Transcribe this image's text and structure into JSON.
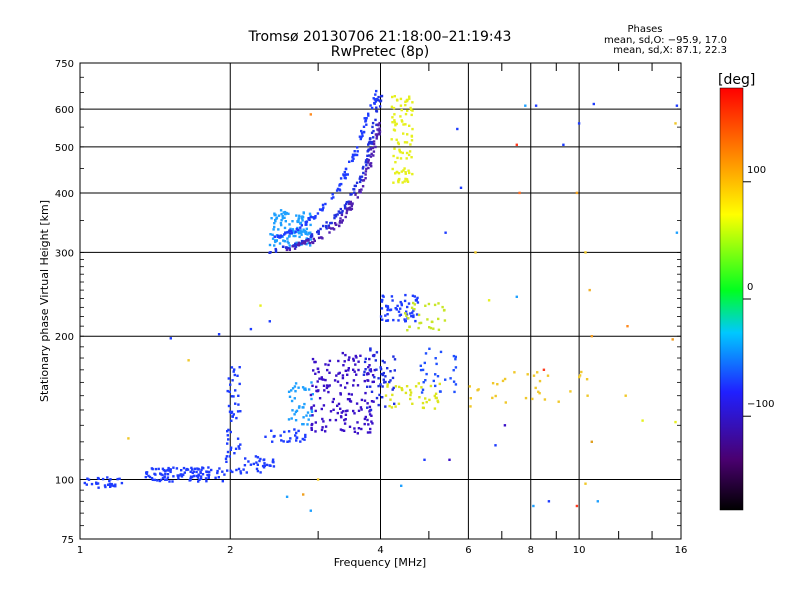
{
  "chart_data": {
    "type": "scatter",
    "title": "Tromsø 20130706 21:18:00–21:19:43",
    "subtitle": "RwPretec (8p)",
    "xlabel": "Frequency [MHz]",
    "ylabel": "Stationary phase Virtual Height [km]",
    "x_scale": "log",
    "y_scale": "log",
    "xlim": [
      1,
      16
    ],
    "ylim": [
      75,
      750
    ],
    "x_ticks": [
      1,
      2,
      4,
      6,
      8,
      10,
      16
    ],
    "x_tick_labels": [
      "1",
      "2",
      "4",
      "6",
      "8",
      "10",
      "16"
    ],
    "x_minor_ticks": [
      3,
      5,
      7,
      9,
      12,
      14
    ],
    "y_ticks": [
      75,
      100,
      200,
      300,
      400,
      500,
      600,
      750
    ],
    "y_tick_labels": [
      "75",
      "100",
      "200",
      "300",
      "400",
      "500",
      "600",
      "750"
    ],
    "grid": true,
    "legend": {
      "title": "Phases",
      "lines": [
        "mean, sd,O:  −95.9, 17.0",
        "mean, sd,X:   87.1, 22.3"
      ],
      "placement": "top-right"
    },
    "colorbar": {
      "label": "[deg]",
      "range": [
        -180,
        180
      ],
      "ticks": [
        100,
        0,
        -100
      ],
      "tick_labels": [
        "100",
        "0",
        "−100"
      ],
      "colormap": "rainbow"
    },
    "clusters": [
      {
        "x_range": [
          1.0,
          1.22
        ],
        "y_range": [
          96,
          101
        ],
        "n": 30,
        "color": "#1e3cff"
      },
      {
        "x_range": [
          1.35,
          1.95
        ],
        "y_range": [
          99,
          106
        ],
        "n": 110,
        "color": "#1e3cff"
      },
      {
        "x_range": [
          1.95,
          2.45
        ],
        "y_range": [
          103,
          112
        ],
        "n": 40,
        "color": "#1e3cff"
      },
      {
        "x_range": [
          1.97,
          2.1
        ],
        "y_range": [
          112,
          175
        ],
        "n": 45,
        "color": "#1e3cff"
      },
      {
        "x_range": [
          2.35,
          2.85
        ],
        "y_range": [
          120,
          128
        ],
        "n": 25,
        "color": "#1e3cff"
      },
      {
        "x_range": [
          2.6,
          2.95
        ],
        "y_range": [
          130,
          160
        ],
        "n": 40,
        "color": "#1ea0ff"
      },
      {
        "x_range": [
          2.9,
          3.9
        ],
        "y_range": [
          125,
          185
        ],
        "n": 170,
        "color": "#3a10c8"
      },
      {
        "x_range": [
          3.7,
          4.3
        ],
        "y_range": [
          140,
          190
        ],
        "n": 50,
        "color": "#2030e0"
      },
      {
        "x_range": [
          4.1,
          5.3
        ],
        "y_range": [
          140,
          160
        ],
        "n": 40,
        "color": "#dce61e"
      },
      {
        "x_range": [
          4.8,
          5.7
        ],
        "y_range": [
          150,
          190
        ],
        "n": 30,
        "color": "#2050ff"
      },
      {
        "x_range": [
          4.0,
          4.8
        ],
        "y_range": [
          215,
          245
        ],
        "n": 60,
        "color": "#1e3cff"
      },
      {
        "x_range": [
          4.4,
          5.4
        ],
        "y_range": [
          205,
          235
        ],
        "n": 30,
        "color": "#c8e628"
      },
      {
        "x_range": [
          2.4,
          2.9
        ],
        "y_range": [
          310,
          370
        ],
        "n": 120,
        "color": "#1ea0ff"
      },
      {
        "x_range": [
          4.2,
          4.65
        ],
        "y_range": [
          420,
          640
        ],
        "n": 90,
        "color": "#e6f01e"
      },
      {
        "x_range": [
          6.0,
          10.5
        ],
        "y_range": [
          140,
          170
        ],
        "n": 30,
        "color": "#f0c82a"
      }
    ],
    "curves": [
      {
        "x": [
          2.4,
          2.8,
          3.1,
          3.4,
          3.7,
          3.85,
          4.0
        ],
        "y": [
          300,
          315,
          340,
          375,
          440,
          520,
          640
        ],
        "n": 120,
        "spread": 0.02,
        "color": "#2030e0"
      },
      {
        "x": [
          2.6,
          3.0,
          3.3,
          3.6,
          3.8,
          4.0
        ],
        "y": [
          305,
          320,
          345,
          395,
          460,
          560
        ],
        "n": 100,
        "spread": 0.02,
        "color": "#5020b0"
      },
      {
        "x": [
          2.45,
          2.7,
          3.0,
          3.3,
          3.55,
          3.75,
          3.95
        ],
        "y": [
          320,
          335,
          360,
          410,
          480,
          570,
          650
        ],
        "n": 110,
        "spread": 0.02,
        "color": "#1e3cff"
      }
    ],
    "scattered": [
      {
        "x": 7.5,
        "y": 505,
        "color": "#ff3a1e"
      },
      {
        "x": 7.6,
        "y": 400,
        "color": "#ff6a1e"
      },
      {
        "x": 7.8,
        "y": 610,
        "color": "#1ea0ff"
      },
      {
        "x": 8.2,
        "y": 610,
        "color": "#1e3cff"
      },
      {
        "x": 9.3,
        "y": 505,
        "color": "#1e3cff"
      },
      {
        "x": 10.0,
        "y": 560,
        "color": "#1e3cff"
      },
      {
        "x": 10.7,
        "y": 615,
        "color": "#1e3cff"
      },
      {
        "x": 9.9,
        "y": 400,
        "color": "#f0a01e"
      },
      {
        "x": 10.3,
        "y": 300,
        "color": "#f0c82a"
      },
      {
        "x": 10.5,
        "y": 250,
        "color": "#f0b02a"
      },
      {
        "x": 10.6,
        "y": 200,
        "color": "#f09a1e"
      },
      {
        "x": 10.4,
        "y": 150,
        "color": "#f0c82a"
      },
      {
        "x": 10.6,
        "y": 120,
        "color": "#e0a020"
      },
      {
        "x": 10.3,
        "y": 98,
        "color": "#f0c82a"
      },
      {
        "x": 15.7,
        "y": 610,
        "color": "#1e3cff"
      },
      {
        "x": 15.6,
        "y": 560,
        "color": "#f0c82a"
      },
      {
        "x": 15.7,
        "y": 330,
        "color": "#1ea0ff"
      },
      {
        "x": 15.4,
        "y": 197,
        "color": "#f09a1e"
      },
      {
        "x": 15.6,
        "y": 132,
        "color": "#e6f01e"
      },
      {
        "x": 13.4,
        "y": 133,
        "color": "#e6f01e"
      },
      {
        "x": 12.4,
        "y": 150,
        "color": "#f0c82a"
      },
      {
        "x": 12.5,
        "y": 210,
        "color": "#ff8a1e"
      },
      {
        "x": 5.7,
        "y": 545,
        "color": "#1e3cff"
      },
      {
        "x": 5.8,
        "y": 410,
        "color": "#1e3cff"
      },
      {
        "x": 5.4,
        "y": 330,
        "color": "#1e3cff"
      },
      {
        "x": 6.2,
        "y": 300,
        "color": "#f0c82a"
      },
      {
        "x": 6.6,
        "y": 238,
        "color": "#e6f01e"
      },
      {
        "x": 7.5,
        "y": 242,
        "color": "#1ea0ff"
      },
      {
        "x": 8.7,
        "y": 90,
        "color": "#1e3cff"
      },
      {
        "x": 8.1,
        "y": 88,
        "color": "#1ea0ff"
      },
      {
        "x": 9.9,
        "y": 88,
        "color": "#ff3a1e"
      },
      {
        "x": 10.9,
        "y": 90,
        "color": "#1ea0ff"
      },
      {
        "x": 2.6,
        "y": 92,
        "color": "#1ea0ff"
      },
      {
        "x": 2.9,
        "y": 86,
        "color": "#1ea0ff"
      },
      {
        "x": 2.8,
        "y": 93,
        "color": "#f0a01e"
      },
      {
        "x": 4.4,
        "y": 97,
        "color": "#1ea0ff"
      },
      {
        "x": 1.52,
        "y": 198,
        "color": "#1e3cff"
      },
      {
        "x": 1.9,
        "y": 202,
        "color": "#1e3cff"
      },
      {
        "x": 2.2,
        "y": 207,
        "color": "#1e3cff"
      },
      {
        "x": 2.4,
        "y": 215,
        "color": "#1e3cff"
      },
      {
        "x": 2.3,
        "y": 232,
        "color": "#e6f01e"
      },
      {
        "x": 1.25,
        "y": 122,
        "color": "#f0c82a"
      },
      {
        "x": 1.65,
        "y": 178,
        "color": "#f0c82a"
      },
      {
        "x": 2.9,
        "y": 585,
        "color": "#ff8a1e"
      },
      {
        "x": 3.0,
        "y": 100,
        "color": "#f0c82a"
      },
      {
        "x": 4.9,
        "y": 110,
        "color": "#1e3cff"
      },
      {
        "x": 5.5,
        "y": 110,
        "color": "#3a10c8"
      },
      {
        "x": 6.8,
        "y": 118,
        "color": "#1e3cff"
      },
      {
        "x": 7.1,
        "y": 130,
        "color": "#3a10c8"
      },
      {
        "x": 8.5,
        "y": 170,
        "color": "#ff3a1e"
      }
    ]
  }
}
